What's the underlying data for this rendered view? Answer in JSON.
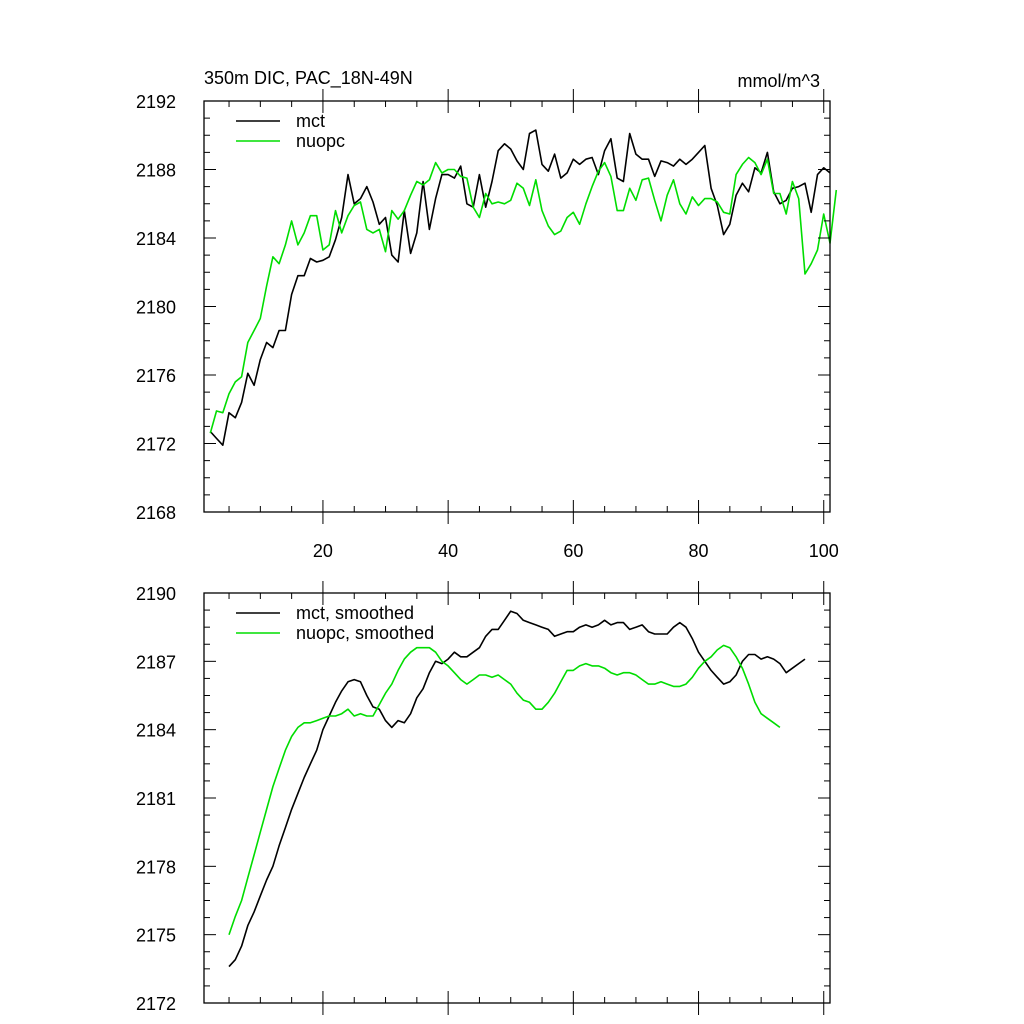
{
  "chart_data": [
    {
      "type": "line",
      "title": "350m DIC, PAC_18N-49N",
      "units_label": "mmol/m^3",
      "xlim": [
        1,
        101
      ],
      "ylim": [
        2168,
        2192
      ],
      "x_ticks": [
        20,
        40,
        60,
        80,
        100
      ],
      "x_tick_labels": [
        "20",
        "40",
        "60",
        "80",
        "100"
      ],
      "y_ticks": [
        2168,
        2172,
        2176,
        2180,
        2184,
        2188,
        2192
      ],
      "y_tick_labels": [
        "2168",
        "2172",
        "2176",
        "2180",
        "2184",
        "2188",
        "2192"
      ],
      "legend_position": "top-left",
      "series": [
        {
          "name": "mct",
          "color": "#000000",
          "x_start": 2,
          "values": [
            2172.7,
            2172.3,
            2171.9,
            2173.8,
            2173.5,
            2174.4,
            2176.1,
            2175.4,
            2176.9,
            2177.9,
            2177.6,
            2178.6,
            2178.6,
            2180.7,
            2181.8,
            2181.8,
            2182.8,
            2182.6,
            2182.7,
            2182.9,
            2183.9,
            2185.2,
            2187.7,
            2186.0,
            2186.3,
            2187.0,
            2186.1,
            2184.8,
            2185.2,
            2183.0,
            2182.6,
            2185.6,
            2183.1,
            2184.3,
            2187.3,
            2184.5,
            2186.3,
            2187.7,
            2187.7,
            2187.5,
            2188.2,
            2186.0,
            2185.8,
            2187.7,
            2185.8,
            2187.3,
            2189.1,
            2189.5,
            2189.2,
            2188.5,
            2188.0,
            2190.1,
            2190.3,
            2188.3,
            2187.9,
            2188.9,
            2187.5,
            2187.8,
            2188.6,
            2188.3,
            2188.6,
            2188.7,
            2187.7,
            2189.1,
            2189.8,
            2187.5,
            2187.3,
            2190.1,
            2188.9,
            2188.6,
            2188.6,
            2187.6,
            2188.5,
            2188.4,
            2188.2,
            2188.6,
            2188.3,
            2188.6,
            2189.0,
            2189.4,
            2186.9,
            2185.9,
            2184.2,
            2184.8,
            2186.5,
            2187.2,
            2186.7,
            2188.1,
            2187.8,
            2189.0,
            2186.7,
            2186.0,
            2186.2,
            2186.9,
            2187.0,
            2187.2,
            2185.5,
            2187.7,
            2188.1,
            2187.8
          ]
        },
        {
          "name": "nuopc",
          "color": "#00dd00",
          "x_start": 2,
          "values": [
            2172.6,
            2173.9,
            2173.8,
            2174.9,
            2175.6,
            2175.9,
            2177.9,
            2178.6,
            2179.3,
            2181.2,
            2182.9,
            2182.5,
            2183.6,
            2185.0,
            2183.6,
            2184.3,
            2185.3,
            2185.3,
            2183.3,
            2183.6,
            2185.6,
            2184.3,
            2185.3,
            2185.9,
            2186.1,
            2184.5,
            2184.3,
            2184.5,
            2183.2,
            2185.6,
            2185.1,
            2185.6,
            2186.5,
            2187.3,
            2187.1,
            2187.4,
            2188.4,
            2187.8,
            2188.0,
            2188.0,
            2187.6,
            2187.5,
            2185.8,
            2185.2,
            2186.6,
            2186.0,
            2186.1,
            2186.0,
            2186.2,
            2187.2,
            2186.9,
            2185.9,
            2187.4,
            2185.6,
            2184.7,
            2184.2,
            2184.4,
            2185.2,
            2185.5,
            2184.8,
            2186.0,
            2187.0,
            2187.9,
            2188.4,
            2187.6,
            2185.6,
            2185.6,
            2186.9,
            2186.2,
            2187.4,
            2187.5,
            2186.2,
            2185.0,
            2186.5,
            2187.4,
            2186.0,
            2185.4,
            2186.4,
            2185.9,
            2186.3,
            2186.3,
            2186.1,
            2185.5,
            2185.4,
            2187.7,
            2188.3,
            2188.7,
            2188.4,
            2187.7,
            2188.6,
            2186.6,
            2186.6,
            2185.4,
            2187.3,
            2186.3,
            2181.9,
            2182.5,
            2183.3,
            2185.4,
            2183.7,
            2186.8
          ]
        }
      ]
    },
    {
      "type": "line",
      "title": "",
      "xlim": [
        1,
        101
      ],
      "ylim": [
        2172,
        2190
      ],
      "x_ticks": [
        20,
        40,
        60,
        80,
        100
      ],
      "y_ticks": [
        2172,
        2175,
        2178,
        2181,
        2184,
        2187,
        2190
      ],
      "y_tick_labels": [
        "2172",
        "2175",
        "2178",
        "2181",
        "2184",
        "2187",
        "2190"
      ],
      "legend_position": "top-left",
      "series": [
        {
          "name": "mct, smoothed",
          "color": "#000000",
          "x_start": 5,
          "values": [
            2173.6,
            2173.9,
            2174.5,
            2175.4,
            2176.0,
            2176.7,
            2177.4,
            2178.0,
            2178.9,
            2179.7,
            2180.5,
            2181.2,
            2181.9,
            2182.5,
            2183.1,
            2184.0,
            2184.6,
            2185.2,
            2185.7,
            2186.1,
            2186.2,
            2186.1,
            2185.5,
            2185.0,
            2184.9,
            2184.4,
            2184.1,
            2184.4,
            2184.3,
            2184.7,
            2185.4,
            2185.8,
            2186.5,
            2187.0,
            2186.9,
            2187.1,
            2187.4,
            2187.2,
            2187.2,
            2187.4,
            2187.6,
            2188.1,
            2188.4,
            2188.4,
            2188.8,
            2189.2,
            2189.1,
            2188.8,
            2188.7,
            2188.6,
            2188.5,
            2188.4,
            2188.1,
            2188.2,
            2188.3,
            2188.3,
            2188.5,
            2188.6,
            2188.5,
            2188.6,
            2188.8,
            2188.6,
            2188.7,
            2188.7,
            2188.4,
            2188.5,
            2188.6,
            2188.3,
            2188.2,
            2188.2,
            2188.2,
            2188.5,
            2188.7,
            2188.5,
            2188.0,
            2187.4,
            2187.0,
            2186.6,
            2186.3,
            2186.0,
            2186.1,
            2186.4,
            2187.0,
            2187.3,
            2187.3,
            2187.1,
            2187.2,
            2187.1,
            2186.9,
            2186.5,
            2186.7,
            2186.9,
            2187.1
          ]
        },
        {
          "name": "nuopc, smoothed",
          "color": "#00dd00",
          "x_start": 5,
          "values": [
            2175.0,
            2175.8,
            2176.5,
            2177.5,
            2178.5,
            2179.5,
            2180.5,
            2181.5,
            2182.3,
            2183.1,
            2183.7,
            2184.1,
            2184.3,
            2184.3,
            2184.4,
            2184.5,
            2184.6,
            2184.6,
            2184.7,
            2184.9,
            2184.6,
            2184.7,
            2184.6,
            2184.6,
            2185.1,
            2185.6,
            2186.0,
            2186.6,
            2187.1,
            2187.4,
            2187.6,
            2187.6,
            2187.6,
            2187.4,
            2187.0,
            2186.8,
            2186.5,
            2186.2,
            2186.0,
            2186.2,
            2186.4,
            2186.4,
            2186.3,
            2186.4,
            2186.2,
            2186.0,
            2185.6,
            2185.3,
            2185.2,
            2184.9,
            2184.9,
            2185.2,
            2185.6,
            2186.1,
            2186.6,
            2186.6,
            2186.8,
            2186.9,
            2186.8,
            2186.8,
            2186.7,
            2186.5,
            2186.4,
            2186.5,
            2186.5,
            2186.4,
            2186.2,
            2186.0,
            2186.0,
            2186.1,
            2186.0,
            2185.9,
            2185.9,
            2186.0,
            2186.3,
            2186.7,
            2187.0,
            2187.2,
            2187.5,
            2187.7,
            2187.6,
            2187.2,
            2186.7,
            2186.0,
            2185.2,
            2184.7,
            2184.5,
            2184.3,
            2184.1
          ]
        }
      ]
    }
  ]
}
